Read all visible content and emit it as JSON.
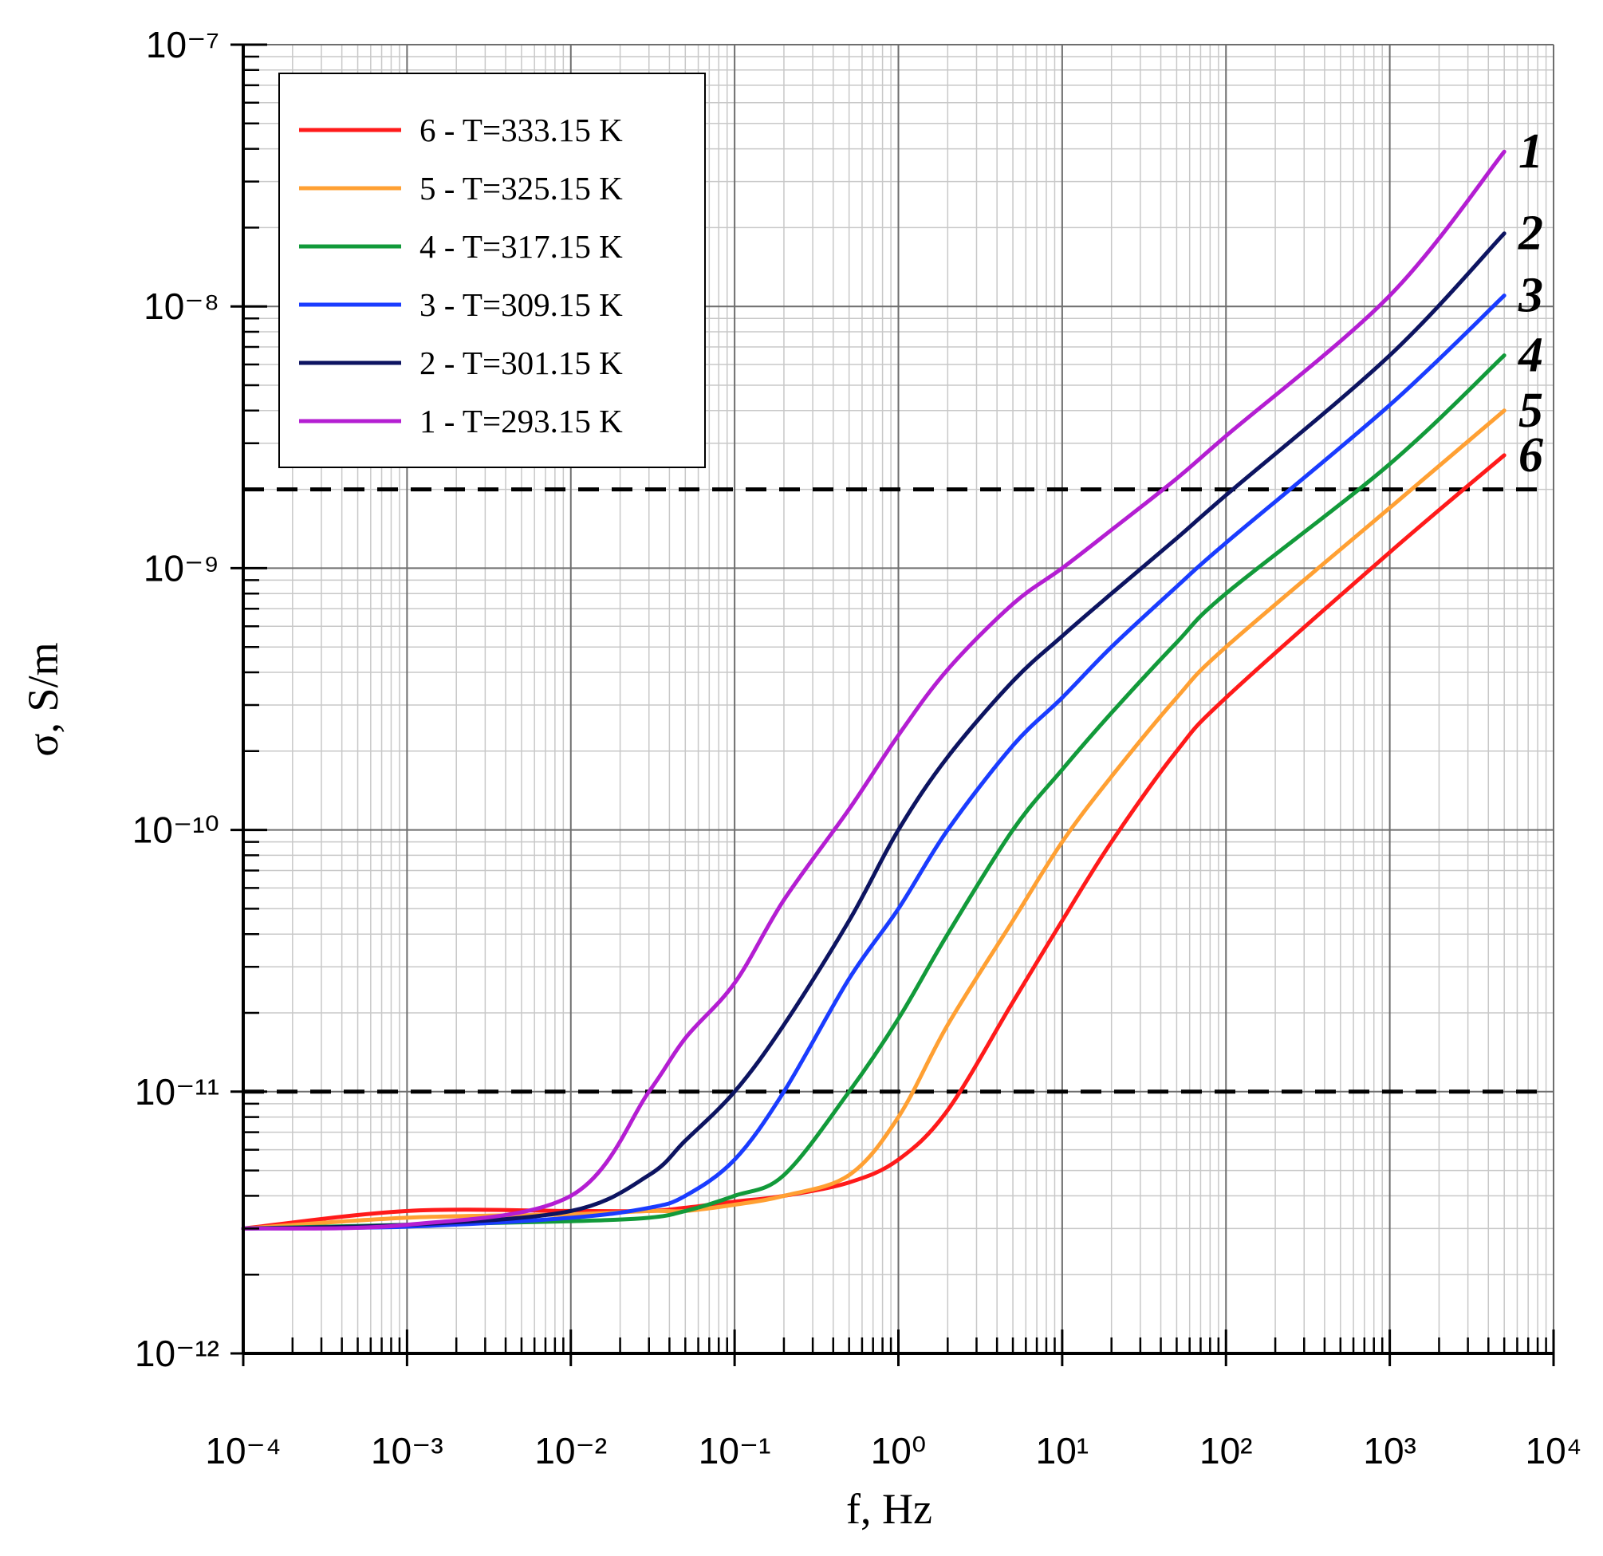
{
  "chart_data": {
    "type": "line",
    "xlabel": "f, Hz",
    "ylabel": "σ, S/m",
    "log_x": true,
    "log_y": true,
    "grid": true,
    "legend": "upper left",
    "xlim": [
      0.0001,
      10000
    ],
    "ylim": [
      1e-12,
      1e-07
    ],
    "xticks": [
      {
        "value": 0.0001,
        "label": "10⁻⁴"
      },
      {
        "value": 0.001,
        "label": "10⁻³"
      },
      {
        "value": 0.01,
        "label": "10⁻²"
      },
      {
        "value": 0.1,
        "label": "10⁻¹"
      },
      {
        "value": 1,
        "label": "10⁰"
      },
      {
        "value": 10,
        "label": "10¹"
      },
      {
        "value": 100,
        "label": "10²"
      },
      {
        "value": 1000,
        "label": "10³"
      },
      {
        "value": 10000,
        "label": "10⁴"
      }
    ],
    "yticks": [
      {
        "value": 1e-12,
        "label": "10⁻¹²"
      },
      {
        "value": 1e-11,
        "label": "10⁻¹¹"
      },
      {
        "value": 1e-10,
        "label": "10⁻¹⁰"
      },
      {
        "value": 1e-09,
        "label": "10⁻⁹"
      },
      {
        "value": 1e-08,
        "label": "10⁻⁸"
      },
      {
        "value": 1e-07,
        "label": "10⁻⁷"
      }
    ],
    "reference_lines": [
      2e-09,
      1e-11
    ],
    "x": [
      0.0001,
      0.001,
      0.01,
      0.03,
      0.05,
      0.1,
      0.2,
      0.5,
      1,
      2,
      5,
      10,
      20,
      50,
      100,
      1000,
      5000
    ],
    "series": [
      {
        "name": "6 - T=333.15 K",
        "label": "6",
        "color": "#ff1a1a",
        "values": [
          3e-12,
          3.5e-12,
          3.5e-12,
          3.5e-12,
          3.6e-12,
          3.8e-12,
          4e-12,
          4.5e-12,
          5.5e-12,
          8.5e-12,
          2.2e-11,
          4.5e-11,
          9e-11,
          2e-10,
          3.2e-10,
          1.15e-09,
          2.7e-09
        ]
      },
      {
        "name": "5 - T=325.15 K",
        "label": "5",
        "color": "#ffa033",
        "values": [
          3e-12,
          3.3e-12,
          3.4e-12,
          3.5e-12,
          3.5e-12,
          3.7e-12,
          4e-12,
          4.8e-12,
          8e-12,
          1.8e-11,
          4.5e-11,
          9e-11,
          1.6e-10,
          3.2e-10,
          5e-10,
          1.7e-09,
          4e-09
        ]
      },
      {
        "name": "4 - T=317.15 K",
        "label": "4",
        "color": "#129a3a",
        "values": [
          3e-12,
          3.1e-12,
          3.2e-12,
          3.3e-12,
          3.5e-12,
          4e-12,
          4.8e-12,
          1e-11,
          1.9e-11,
          4e-11,
          1e-10,
          1.7e-10,
          2.8e-10,
          5.2e-10,
          8e-10,
          2.5e-09,
          6.5e-09
        ]
      },
      {
        "name": "3 - T=309.15 K",
        "label": "3",
        "color": "#1a3cff",
        "values": [
          3e-12,
          3.05e-12,
          3.3e-12,
          3.6e-12,
          4e-12,
          5.5e-12,
          1e-11,
          2.7e-11,
          5e-11,
          1e-10,
          2.1e-10,
          3.2e-10,
          5e-10,
          8.5e-10,
          1.25e-09,
          4.2e-09,
          1.1e-08
        ]
      },
      {
        "name": "2 - T=301.15 K",
        "label": "2",
        "color": "#0d1461",
        "values": [
          3e-12,
          3.1e-12,
          3.5e-12,
          4.8e-12,
          6.5e-12,
          1e-11,
          1.8e-11,
          4.5e-11,
          1e-10,
          1.9e-10,
          3.7e-10,
          5.5e-10,
          8e-10,
          1.3e-09,
          1.9e-09,
          6.5e-09,
          1.9e-08
        ]
      },
      {
        "name": "1 - T=293.15 K",
        "label": "1",
        "color": "#b41ed2",
        "values": [
          3e-12,
          3.1e-12,
          4e-12,
          1e-11,
          1.6e-11,
          2.6e-11,
          5.4e-11,
          1.2e-10,
          2.3e-10,
          4.1e-10,
          7.3e-10,
          1e-09,
          1.4e-09,
          2.2e-09,
          3.2e-09,
          1.1e-08,
          3.9e-08
        ]
      }
    ]
  }
}
